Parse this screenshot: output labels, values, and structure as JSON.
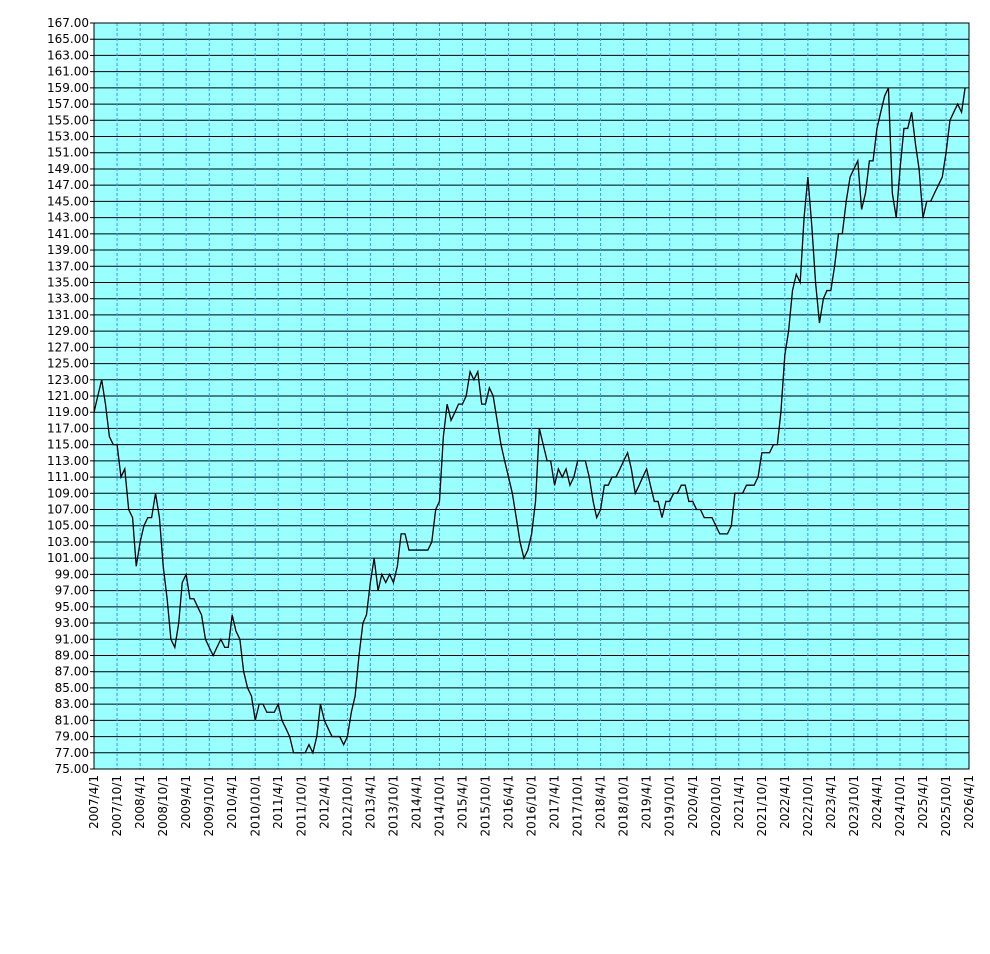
{
  "chart_data": {
    "type": "line",
    "x": [
      "2007/4/1",
      "2007/5/1",
      "2007/6/1",
      "2007/7/1",
      "2007/8/1",
      "2007/9/1",
      "2007/10/1",
      "2007/11/1",
      "2007/12/1",
      "2008/1/1",
      "2008/2/1",
      "2008/3/1",
      "2008/4/1",
      "2008/5/1",
      "2008/6/1",
      "2008/7/1",
      "2008/8/1",
      "2008/9/1",
      "2008/10/1",
      "2008/11/1",
      "2008/12/1",
      "2009/1/1",
      "2009/2/1",
      "2009/3/1",
      "2009/4/1",
      "2009/5/1",
      "2009/6/1",
      "2009/7/1",
      "2009/8/1",
      "2009/9/1",
      "2009/10/1",
      "2009/11/1",
      "2009/12/1",
      "2010/1/1",
      "2010/2/1",
      "2010/3/1",
      "2010/4/1",
      "2010/5/1",
      "2010/6/1",
      "2010/7/1",
      "2010/8/1",
      "2010/9/1",
      "2010/10/1",
      "2010/11/1",
      "2010/12/1",
      "2011/1/1",
      "2011/2/1",
      "2011/3/1",
      "2011/4/1",
      "2011/5/1",
      "2011/6/1",
      "2011/7/1",
      "2011/8/1",
      "2011/9/1",
      "2011/10/1",
      "2011/11/1",
      "2011/12/1",
      "2012/1/1",
      "2012/2/1",
      "2012/3/1",
      "2012/4/1",
      "2012/5/1",
      "2012/6/1",
      "2012/7/1",
      "2012/8/1",
      "2012/9/1",
      "2012/10/1",
      "2012/11/1",
      "2012/12/1",
      "2013/1/1",
      "2013/2/1",
      "2013/3/1",
      "2013/4/1",
      "2013/5/1",
      "2013/6/1",
      "2013/7/1",
      "2013/8/1",
      "2013/9/1",
      "2013/10/1",
      "2013/11/1",
      "2013/12/1",
      "2014/1/1",
      "2014/2/1",
      "2014/3/1",
      "2014/4/1",
      "2014/5/1",
      "2014/6/1",
      "2014/7/1",
      "2014/8/1",
      "2014/9/1",
      "2014/10/1",
      "2014/11/1",
      "2014/12/1",
      "2015/1/1",
      "2015/2/1",
      "2015/3/1",
      "2015/4/1",
      "2015/5/1",
      "2015/6/1",
      "2015/7/1",
      "2015/8/1",
      "2015/9/1",
      "2015/10/1",
      "2015/11/1",
      "2015/12/1",
      "2016/1/1",
      "2016/2/1",
      "2016/3/1",
      "2016/4/1",
      "2016/5/1",
      "2016/6/1",
      "2016/7/1",
      "2016/8/1",
      "2016/9/1",
      "2016/10/1",
      "2016/11/1",
      "2016/12/1",
      "2017/1/1",
      "2017/2/1",
      "2017/3/1",
      "2017/4/1",
      "2017/5/1",
      "2017/6/1",
      "2017/7/1",
      "2017/8/1",
      "2017/9/1",
      "2017/10/1",
      "2017/11/1",
      "2017/12/1",
      "2018/1/1",
      "2018/2/1",
      "2018/3/1",
      "2018/4/1",
      "2018/5/1",
      "2018/6/1",
      "2018/7/1",
      "2018/8/1",
      "2018/9/1",
      "2018/10/1",
      "2018/11/1",
      "2018/12/1",
      "2019/1/1",
      "2019/2/1",
      "2019/3/1",
      "2019/4/1",
      "2019/5/1",
      "2019/6/1",
      "2019/7/1",
      "2019/8/1",
      "2019/9/1",
      "2019/10/1",
      "2019/11/1",
      "2019/12/1",
      "2020/1/1",
      "2020/2/1",
      "2020/3/1",
      "2020/4/1",
      "2020/5/1",
      "2020/6/1",
      "2020/7/1",
      "2020/8/1",
      "2020/9/1",
      "2020/10/1",
      "2020/11/1",
      "2020/12/1",
      "2021/1/1",
      "2021/2/1",
      "2021/3/1",
      "2021/4/1",
      "2021/5/1",
      "2021/6/1",
      "2021/7/1",
      "2021/8/1",
      "2021/9/1",
      "2021/10/1",
      "2021/11/1",
      "2021/12/1",
      "2022/1/1",
      "2022/2/1",
      "2022/3/1",
      "2022/4/1",
      "2022/5/1",
      "2022/6/1",
      "2022/7/1",
      "2022/8/1",
      "2022/9/1",
      "2022/10/1",
      "2022/11/1",
      "2022/12/1",
      "2023/1/1",
      "2023/2/1",
      "2023/3/1",
      "2023/4/1",
      "2023/5/1",
      "2023/6/1",
      "2023/7/1",
      "2023/8/1",
      "2023/9/1",
      "2023/10/1",
      "2023/11/1",
      "2023/12/1",
      "2024/1/1",
      "2024/2/1",
      "2024/3/1",
      "2024/4/1",
      "2024/5/1",
      "2024/6/1",
      "2024/7/1",
      "2024/8/1",
      "2024/9/1",
      "2024/10/1",
      "2024/11/1",
      "2024/12/1",
      "2025/1/1",
      "2025/2/1",
      "2025/3/1",
      "2025/4/1",
      "2025/5/1",
      "2025/6/1",
      "2025/7/1",
      "2025/8/1",
      "2025/9/1",
      "2025/10/1",
      "2025/11/1",
      "2025/12/1",
      "2026/1/1",
      "2026/2/1",
      "2026/3/1"
    ],
    "series": [
      {
        "color": "#000000",
        "values": [
          119,
          121,
          123,
          120,
          116,
          115,
          115,
          111,
          112,
          107,
          106,
          100,
          103,
          105,
          106,
          106,
          109,
          106,
          100,
          96,
          91,
          90,
          93,
          98,
          99,
          96,
          96,
          95,
          94,
          91,
          90,
          89,
          90,
          91,
          90,
          90,
          94,
          92,
          91,
          87,
          85,
          84,
          81,
          83,
          83,
          82,
          82,
          82,
          83,
          81,
          80,
          79,
          77,
          77,
          77,
          77,
          78,
          77,
          79,
          83,
          81,
          80,
          79,
          79,
          79,
          78,
          79,
          82,
          84,
          89,
          93,
          94,
          98,
          101,
          97,
          99,
          98,
          99,
          98,
          100,
          104,
          104,
          102,
          102,
          102,
          102,
          102,
          102,
          103,
          107,
          108,
          116,
          120,
          118,
          119,
          120,
          120,
          121,
          124,
          123,
          124,
          120,
          120,
          122,
          121,
          118,
          115,
          113,
          111,
          109,
          106,
          103,
          101,
          102,
          104,
          108,
          117,
          115,
          113,
          113,
          110,
          112,
          111,
          112,
          110,
          111,
          113,
          113,
          113,
          111,
          108,
          106,
          107,
          110,
          110,
          111,
          111,
          112,
          113,
          114,
          112,
          109,
          110,
          111,
          112,
          110,
          108,
          108,
          106,
          108,
          108,
          109,
          109,
          110,
          110,
          108,
          108,
          107,
          107,
          106,
          106,
          106,
          105,
          104,
          104,
          104,
          105,
          109,
          109,
          109,
          110,
          110,
          110,
          111,
          114,
          114,
          114,
          115,
          115,
          119,
          126,
          129,
          134,
          136,
          135,
          143,
          148,
          142,
          135,
          130,
          133,
          134,
          134,
          137,
          141,
          141,
          145,
          148,
          149,
          150,
          144,
          146,
          150,
          150,
          154,
          156,
          158,
          159,
          146,
          143,
          149,
          154,
          154,
          156,
          152,
          149,
          143,
          145,
          145,
          146,
          147,
          148,
          151,
          155,
          156,
          157,
          156,
          159
        ]
      }
    ],
    "xlim": [
      "2007/4/1",
      "2026/4/1"
    ],
    "xticks": [
      "2007/4/1",
      "2007/10/1",
      "2008/4/1",
      "2008/10/1",
      "2009/4/1",
      "2009/10/1",
      "2010/4/1",
      "2010/10/1",
      "2011/4/1",
      "2011/10/1",
      "2012/4/1",
      "2012/10/1",
      "2013/4/1",
      "2013/10/1",
      "2014/4/1",
      "2014/10/1",
      "2015/4/1",
      "2015/10/1",
      "2016/4/1",
      "2016/10/1",
      "2017/4/1",
      "2017/10/1",
      "2018/4/1",
      "2018/10/1",
      "2019/4/1",
      "2019/10/1",
      "2020/4/1",
      "2020/10/1",
      "2021/4/1",
      "2021/10/1",
      "2022/4/1",
      "2022/10/1",
      "2023/4/1",
      "2023/10/1",
      "2024/4/1",
      "2024/10/1",
      "2025/4/1",
      "2025/10/1",
      "2026/4/1"
    ],
    "ylim": [
      75,
      167
    ],
    "yticks": [
      {
        "value": 75,
        "label": "75.00"
      },
      {
        "value": 77,
        "label": "77.00"
      },
      {
        "value": 79,
        "label": "79.00"
      },
      {
        "value": 81,
        "label": "81.00"
      },
      {
        "value": 83,
        "label": "83.00"
      },
      {
        "value": 85,
        "label": "85.00"
      },
      {
        "value": 87,
        "label": "87.00"
      },
      {
        "value": 89,
        "label": "89.00"
      },
      {
        "value": 91,
        "label": "91.00"
      },
      {
        "value": 93,
        "label": "93.00"
      },
      {
        "value": 95,
        "label": "95.00"
      },
      {
        "value": 97,
        "label": "97.00"
      },
      {
        "value": 99,
        "label": "99.00"
      },
      {
        "value": 101,
        "label": "101.00"
      },
      {
        "value": 103,
        "label": "103.00"
      },
      {
        "value": 105,
        "label": "105.00"
      },
      {
        "value": 107,
        "label": "107.00"
      },
      {
        "value": 109,
        "label": "109.00"
      },
      {
        "value": 111,
        "label": "111.00"
      },
      {
        "value": 113,
        "label": "113.00"
      },
      {
        "value": 115,
        "label": "115.00"
      },
      {
        "value": 117,
        "label": "117.00"
      },
      {
        "value": 119,
        "label": "119.00"
      },
      {
        "value": 121,
        "label": "121.00"
      },
      {
        "value": 123,
        "label": "123.00"
      },
      {
        "value": 125,
        "label": "125.00"
      },
      {
        "value": 127,
        "label": "127.00"
      },
      {
        "value": 129,
        "label": "129.00"
      },
      {
        "value": 131,
        "label": "131.00"
      },
      {
        "value": 133,
        "label": "133.00"
      },
      {
        "value": 135,
        "label": "135.00"
      },
      {
        "value": 137,
        "label": "137.00"
      },
      {
        "value": 139,
        "label": "139.00"
      },
      {
        "value": 141,
        "label": "141.00"
      },
      {
        "value": 143,
        "label": "143.00"
      },
      {
        "value": 145,
        "label": "145.00"
      },
      {
        "value": 147,
        "label": "147.00"
      },
      {
        "value": 149,
        "label": "149.00"
      },
      {
        "value": 151,
        "label": "151.00"
      },
      {
        "value": 153,
        "label": "153.00"
      },
      {
        "value": 155,
        "label": "155.00"
      },
      {
        "value": 157,
        "label": "157.00"
      },
      {
        "value": 159,
        "label": "159.00"
      },
      {
        "value": 161,
        "label": "161.00"
      },
      {
        "value": 163,
        "label": "163.00"
      },
      {
        "value": 165,
        "label": "165.00"
      },
      {
        "value": 167,
        "label": "167.00"
      }
    ],
    "grid": true
  }
}
